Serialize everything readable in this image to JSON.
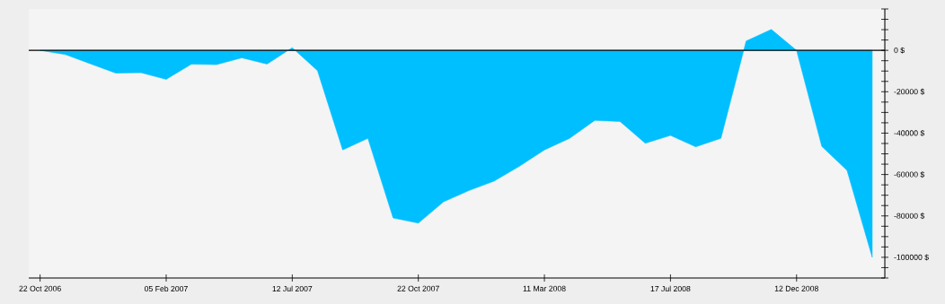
{
  "chart_data": {
    "type": "area",
    "categories": [
      "22 Oct 2006",
      null,
      null,
      null,
      null,
      "05 Feb 2007",
      null,
      null,
      null,
      null,
      "12 Jul 2007",
      null,
      null,
      null,
      null,
      "22 Oct 2007",
      null,
      null,
      null,
      null,
      "11 Mar 2008",
      null,
      null,
      null,
      null,
      "17 Jul 2008",
      null,
      null,
      null,
      null,
      "12 Dec 2008",
      null,
      null,
      null
    ],
    "values": [
      0,
      -2000,
      -6500,
      -11000,
      -10800,
      -14000,
      -6700,
      -6900,
      -3600,
      -6600,
      1300,
      -9800,
      -48100,
      -42500,
      -81000,
      -83500,
      -73200,
      -67800,
      -63200,
      -56100,
      -48100,
      -42500,
      -33800,
      -34400,
      -44900,
      -41100,
      -46600,
      -42500,
      4500,
      10100,
      0,
      -46400,
      -58000,
      -100000
    ],
    "color": "#00bfff",
    "ylim": [
      -110000,
      20000
    ],
    "yticks": [
      {
        "value": -110000,
        "label": null
      },
      {
        "value": -105000,
        "label": null
      },
      {
        "value": -100000,
        "label": "-100000 $"
      },
      {
        "value": -95000,
        "label": null
      },
      {
        "value": -90000,
        "label": null
      },
      {
        "value": -85000,
        "label": null
      },
      {
        "value": -80000,
        "label": "-80000 $"
      },
      {
        "value": -75000,
        "label": null
      },
      {
        "value": -70000,
        "label": null
      },
      {
        "value": -65000,
        "label": null
      },
      {
        "value": -60000,
        "label": "-60000 $"
      },
      {
        "value": -55000,
        "label": null
      },
      {
        "value": -50000,
        "label": null
      },
      {
        "value": -45000,
        "label": null
      },
      {
        "value": -40000,
        "label": "-40000 $"
      },
      {
        "value": -35000,
        "label": null
      },
      {
        "value": -30000,
        "label": null
      },
      {
        "value": -25000,
        "label": null
      },
      {
        "value": -20000,
        "label": "-20000 $"
      },
      {
        "value": -15000,
        "label": null
      },
      {
        "value": -10000,
        "label": null
      },
      {
        "value": -5000,
        "label": null
      },
      {
        "value": 0,
        "label": "0 $"
      },
      {
        "value": 5000,
        "label": null
      },
      {
        "value": 10000,
        "label": null
      },
      {
        "value": 15000,
        "label": null
      },
      {
        "value": 20000,
        "label": null
      }
    ],
    "ref_lines": [
      {
        "axis": "y",
        "value": 0,
        "color": "#000000"
      }
    ]
  }
}
